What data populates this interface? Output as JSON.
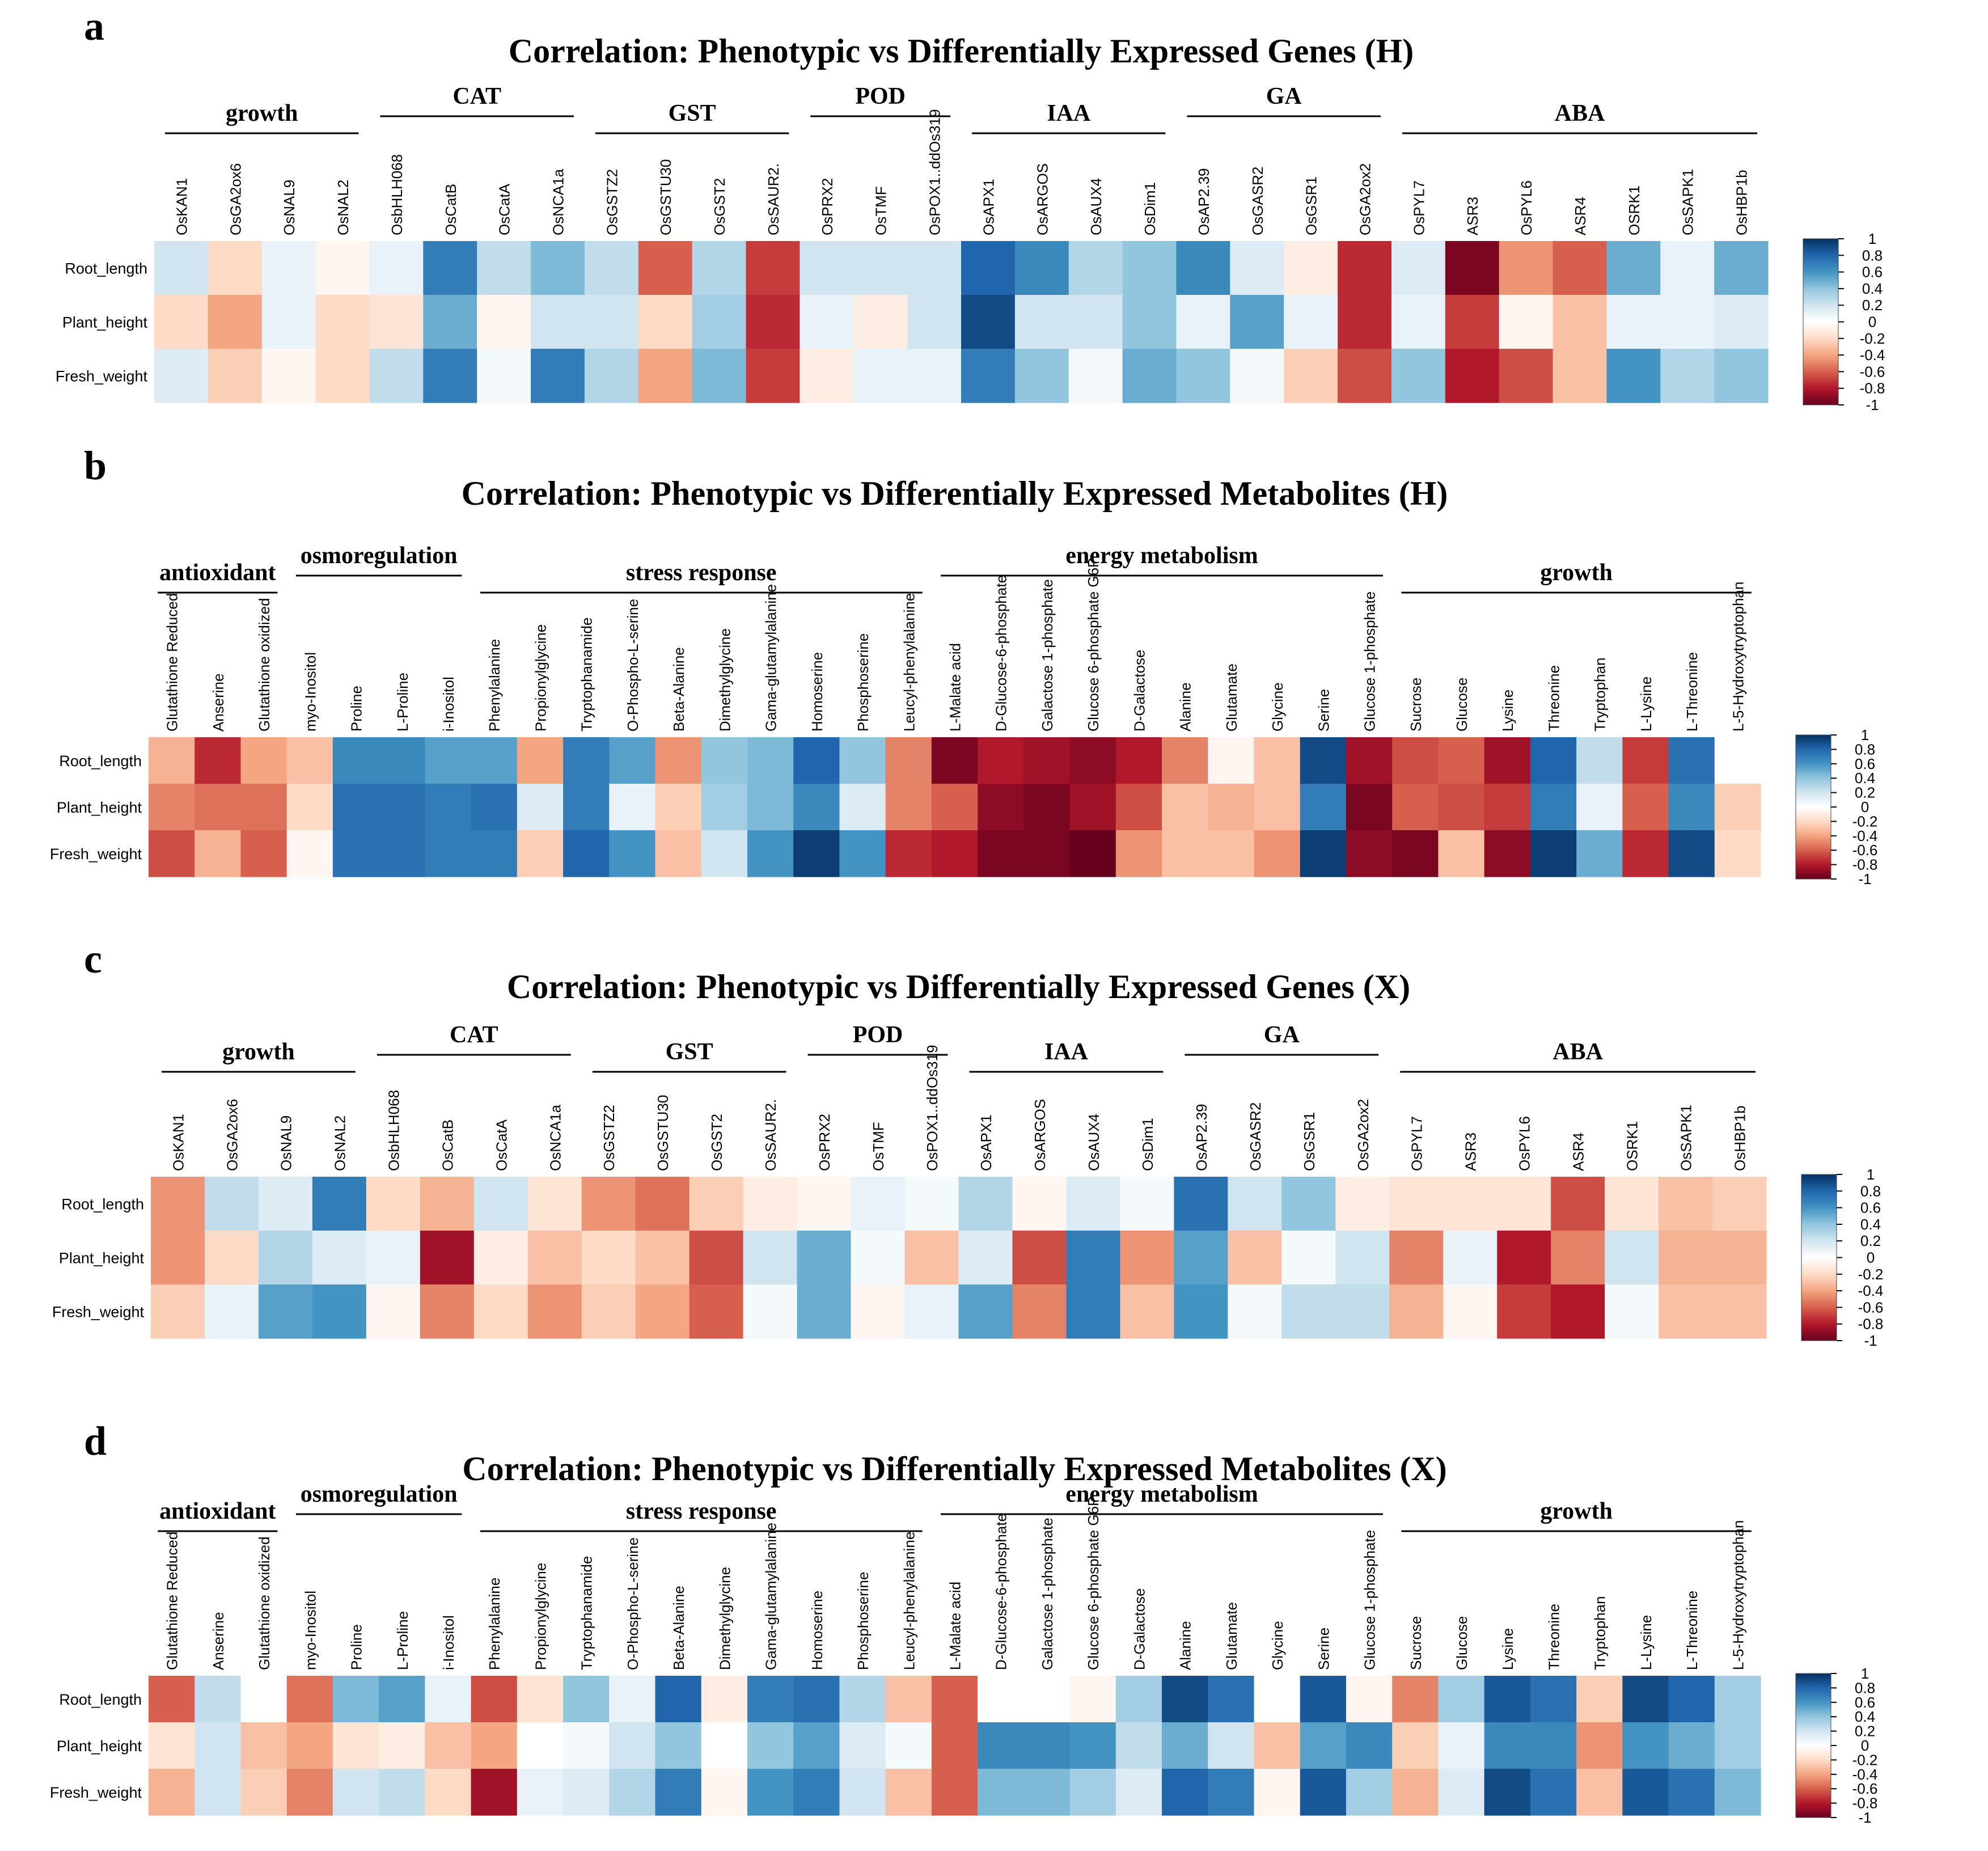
{
  "figure": {
    "scale": {
      "ticks": [
        "1",
        "0.8",
        "0.6",
        "0.4",
        "0.2",
        "0",
        "-0.2",
        "-0.4",
        "-0.6",
        "-0.8",
        "-1"
      ]
    },
    "colors": {
      "negative": "#67001f",
      "neutral": "#ffffff",
      "positive": "#053061"
    }
  },
  "chart_data": [
    {
      "type": "heatmap",
      "panel_letter": "a",
      "title": "Correlation: Phenotypic vs Differentially Expressed Genes (H)",
      "rows": [
        "Root_length",
        "Plant_height",
        "Fresh_weight"
      ],
      "columns": [
        "OsKAN1",
        "OsGA2ox6",
        "OsNAL9",
        "OsNAL2",
        "OsbHLH068",
        "OsCatB",
        "OsCatA",
        "OsNCA1a",
        "OsGSTZ2",
        "OsGSTU30",
        "OsGST2",
        "OsSAUR2.",
        "OsPRX2",
        "OsTMF",
        "OsPOX1..ddOs319",
        "OsAPX1",
        "OsARGOS",
        "OsAUX4",
        "OsDim1",
        "OsAP2.39",
        "OsGASR2",
        "OsGSR1",
        "OsGA2ox2",
        "OsPYL7",
        "ASR3",
        "OsPYL6",
        "ASR4",
        "OSRK1",
        "OsSAPK1",
        "OsHBP1b"
      ],
      "groups": [
        {
          "label": "growth",
          "start": 0,
          "end": 3
        },
        {
          "label": "CAT",
          "start": 4,
          "end": 7
        },
        {
          "label": "GST",
          "start": 8,
          "end": 11
        },
        {
          "label": "POD",
          "start": 12,
          "end": 14
        },
        {
          "label": "IAA",
          "start": 15,
          "end": 18
        },
        {
          "label": "GA",
          "start": 19,
          "end": 22
        },
        {
          "label": "ABA",
          "start": 23,
          "end": 29
        }
      ],
      "values": [
        [
          0.2,
          -0.2,
          0.1,
          -0.05,
          0.1,
          0.7,
          0.25,
          0.45,
          0.25,
          -0.6,
          0.3,
          -0.7,
          0.2,
          0.2,
          0.2,
          0.8,
          0.65,
          0.3,
          0.4,
          0.65,
          0.15,
          -0.1,
          -0.75,
          0.15,
          -0.95,
          -0.45,
          -0.6,
          0.5,
          0.1,
          0.5
        ],
        [
          -0.2,
          -0.4,
          0.1,
          -0.2,
          -0.15,
          0.5,
          -0.05,
          0.2,
          0.2,
          -0.2,
          0.35,
          -0.75,
          0.1,
          -0.1,
          0.2,
          0.9,
          0.2,
          0.2,
          0.4,
          0.1,
          0.55,
          0.1,
          -0.75,
          0.1,
          -0.7,
          -0.05,
          -0.3,
          0.1,
          0.1,
          0.15
        ],
        [
          0.15,
          -0.25,
          -0.05,
          -0.2,
          0.25,
          0.7,
          0.05,
          0.7,
          0.3,
          -0.4,
          0.45,
          -0.7,
          -0.1,
          0.1,
          0.1,
          0.7,
          0.4,
          0.05,
          0.5,
          0.4,
          0.05,
          -0.25,
          -0.65,
          0.4,
          -0.8,
          -0.65,
          -0.3,
          0.6,
          0.3,
          0.4
        ]
      ],
      "value_range": [
        -1,
        1
      ]
    },
    {
      "type": "heatmap",
      "panel_letter": "b",
      "title": "Correlation: Phenotypic vs Differentially Expressed Metabolites (H)",
      "rows": [
        "Root_length",
        "Plant_height",
        "Fresh_weight"
      ],
      "columns": [
        "Glutathione Reduced",
        "Anserine",
        "Glutathione oxidized",
        "myo-Inositol",
        "Proline",
        "L-Proline",
        "i-Inositol",
        "Phenylalanine",
        "Propionylglycine",
        "Tryptophanamide",
        "O-Phospho-L-serine",
        "Beta-Alanine",
        "Dimethylglycine",
        "Gama-glutamylalanine",
        "Homoserine",
        "Phosphoserine",
        "Leucyl-phenylalanine",
        "L-Malate acid",
        "D-Glucose-6-phosphate",
        "Galactose 1-phosphate",
        "Glucose 6-phosphate G6P",
        "D-Galactose",
        "Alanine",
        "Glutamate",
        "Glycine",
        "Serine",
        "Glucose 1-phosphate",
        "Sucrose",
        "Glucose",
        "Lysine",
        "Threonine",
        "Tryptophan",
        "L-Lysine",
        "L-Threonine",
        "L-5-Hydroxytryptophan"
      ],
      "groups": [
        {
          "label": "antioxidant",
          "start": 0,
          "end": 2
        },
        {
          "label": "osmoregulation",
          "start": 3,
          "end": 6
        },
        {
          "label": "stress response",
          "start": 7,
          "end": 16
        },
        {
          "label": "energy metabolism",
          "start": 17,
          "end": 26
        },
        {
          "label": "growth",
          "start": 27,
          "end": 34
        }
      ],
      "values": [
        [
          -0.35,
          -0.75,
          -0.4,
          -0.3,
          0.65,
          0.65,
          0.55,
          0.55,
          -0.4,
          0.7,
          0.55,
          -0.45,
          0.4,
          0.45,
          0.8,
          0.4,
          -0.5,
          -0.95,
          -0.8,
          -0.85,
          -0.9,
          -0.8,
          -0.5,
          -0.05,
          -0.3,
          0.9,
          -0.85,
          -0.65,
          -0.6,
          -0.85,
          0.8,
          0.25,
          -0.7,
          0.75,
          null
        ],
        [
          -0.5,
          -0.55,
          -0.55,
          -0.2,
          0.75,
          0.75,
          0.7,
          0.75,
          0.15,
          0.7,
          0.1,
          -0.25,
          0.35,
          0.45,
          0.65,
          0.15,
          -0.5,
          -0.6,
          -0.9,
          -0.95,
          -0.85,
          -0.65,
          -0.3,
          -0.35,
          -0.3,
          0.7,
          -0.95,
          -0.6,
          -0.65,
          -0.7,
          0.7,
          0.1,
          -0.6,
          0.65,
          -0.25
        ],
        [
          -0.65,
          -0.35,
          -0.6,
          -0.05,
          0.75,
          0.75,
          0.7,
          0.7,
          -0.25,
          0.8,
          0.6,
          -0.3,
          0.2,
          0.6,
          0.95,
          0.6,
          -0.75,
          -0.8,
          -0.95,
          -0.95,
          -1.0,
          -0.45,
          -0.3,
          -0.3,
          -0.45,
          0.95,
          -0.9,
          -0.95,
          -0.3,
          -0.9,
          0.95,
          0.5,
          -0.75,
          0.9,
          -0.2
        ]
      ],
      "value_range": [
        -1,
        1
      ]
    },
    {
      "type": "heatmap",
      "panel_letter": "c",
      "title": "Correlation: Phenotypic vs Differentially Expressed Genes (X)",
      "rows": [
        "Root_length",
        "Plant_height",
        "Fresh_weight"
      ],
      "columns": [
        "OsKAN1",
        "OsGA2ox6",
        "OsNAL9",
        "OsNAL2",
        "OsbHLH068",
        "OsCatB",
        "OsCatA",
        "OsNCA1a",
        "OsGSTZ2",
        "OsGSTU30",
        "OsGST2",
        "OsSAUR2.",
        "OsPRX2",
        "OsTMF",
        "OsPOX1..ddOs319",
        "OsAPX1",
        "OsARGOS",
        "OsAUX4",
        "OsDim1",
        "OsAP2.39",
        "OsGASR2",
        "OsGSR1",
        "OsGA2ox2",
        "OsPYL7",
        "ASR3",
        "OsPYL6",
        "ASR4",
        "OSRK1",
        "OsSAPK1",
        "OsHBP1b"
      ],
      "groups": [
        {
          "label": "growth",
          "start": 0,
          "end": 3
        },
        {
          "label": "CAT",
          "start": 4,
          "end": 7
        },
        {
          "label": "GST",
          "start": 8,
          "end": 11
        },
        {
          "label": "POD",
          "start": 12,
          "end": 14
        },
        {
          "label": "IAA",
          "start": 15,
          "end": 18
        },
        {
          "label": "GA",
          "start": 19,
          "end": 22
        },
        {
          "label": "ABA",
          "start": 23,
          "end": 29
        }
      ],
      "values": [
        [
          -0.45,
          0.25,
          0.15,
          0.7,
          -0.2,
          -0.35,
          0.2,
          -0.15,
          -0.45,
          -0.55,
          -0.25,
          -0.1,
          -0.05,
          0.1,
          0.05,
          0.3,
          -0.05,
          0.15,
          0.05,
          0.75,
          0.2,
          0.4,
          -0.1,
          -0.15,
          -0.15,
          -0.15,
          -0.65,
          -0.15,
          -0.3,
          -0.25
        ],
        [
          -0.45,
          -0.2,
          0.3,
          0.15,
          0.1,
          -0.85,
          -0.1,
          -0.3,
          -0.2,
          -0.3,
          -0.65,
          0.2,
          0.5,
          0.05,
          -0.3,
          0.15,
          -0.65,
          0.7,
          -0.45,
          0.55,
          -0.3,
          0.05,
          0.2,
          -0.5,
          0.1,
          -0.8,
          -0.5,
          0.2,
          -0.35,
          -0.35
        ],
        [
          -0.25,
          0.1,
          0.55,
          0.6,
          -0.05,
          -0.5,
          -0.2,
          -0.45,
          -0.25,
          -0.4,
          -0.6,
          0.05,
          0.5,
          -0.05,
          0.1,
          0.55,
          -0.5,
          0.7,
          -0.3,
          0.6,
          0.05,
          0.25,
          0.25,
          -0.35,
          -0.05,
          -0.7,
          -0.8,
          0.05,
          -0.3,
          -0.3
        ]
      ],
      "value_range": [
        -1,
        1
      ]
    },
    {
      "type": "heatmap",
      "panel_letter": "d",
      "title": "Correlation: Phenotypic vs Differentially Expressed Metabolites (X)",
      "rows": [
        "Root_length",
        "Plant_height",
        "Fresh_weight"
      ],
      "columns": [
        "Glutathione Reduced",
        "Anserine",
        "Glutathione oxidized",
        "myo-Inositol",
        "Proline",
        "L-Proline",
        "i-Inositol",
        "Phenylalanine",
        "Propionylglycine",
        "Tryptophanamide",
        "O-Phospho-L-serine",
        "Beta-Alanine",
        "Dimethylglycine",
        "Gama-glutamylalanine",
        "Homoserine",
        "Phosphoserine",
        "Leucyl-phenylalanine",
        "L-Malate acid",
        "D-Glucose-6-phosphate",
        "Galactose 1-phosphate",
        "Glucose 6-phosphate G6P",
        "D-Galactose",
        "Alanine",
        "Glutamate",
        "Glycine",
        "Serine",
        "Glucose 1-phosphate",
        "Sucrose",
        "Glucose",
        "Lysine",
        "Threonine",
        "Tryptophan",
        "L-Lysine",
        "L-Threonine",
        "L-5-Hydroxytryptophan"
      ],
      "groups": [
        {
          "label": "antioxidant",
          "start": 0,
          "end": 2
        },
        {
          "label": "osmoregulation",
          "start": 3,
          "end": 6
        },
        {
          "label": "stress response",
          "start": 7,
          "end": 16
        },
        {
          "label": "energy metabolism",
          "start": 17,
          "end": 26
        },
        {
          "label": "growth",
          "start": 27,
          "end": 34
        }
      ],
      "values": [
        [
          -0.6,
          0.25,
          0.0,
          -0.55,
          0.45,
          0.55,
          0.1,
          -0.65,
          -0.15,
          0.4,
          0.1,
          0.8,
          -0.1,
          0.7,
          0.75,
          0.3,
          -0.3,
          -0.6,
          0.0,
          0.0,
          -0.05,
          0.35,
          0.9,
          0.75,
          0.0,
          0.85,
          -0.05,
          -0.5,
          0.35,
          0.85,
          0.75,
          -0.25,
          0.9,
          0.8,
          0.35
        ],
        [
          -0.15,
          0.2,
          -0.3,
          -0.4,
          -0.15,
          -0.1,
          -0.3,
          -0.4,
          0.0,
          0.05,
          0.2,
          0.4,
          0.0,
          0.4,
          0.55,
          0.15,
          0.05,
          -0.6,
          0.65,
          0.65,
          0.6,
          0.25,
          0.5,
          0.2,
          -0.3,
          0.55,
          0.65,
          -0.25,
          0.1,
          0.65,
          0.65,
          -0.45,
          0.6,
          0.5,
          0.35
        ],
        [
          -0.35,
          0.2,
          -0.25,
          -0.5,
          0.2,
          0.25,
          -0.2,
          -0.85,
          0.1,
          0.15,
          0.3,
          0.7,
          -0.05,
          0.6,
          0.7,
          0.2,
          -0.3,
          -0.6,
          0.45,
          0.45,
          0.35,
          0.15,
          0.8,
          0.7,
          -0.05,
          0.85,
          0.35,
          -0.35,
          0.15,
          0.9,
          0.75,
          -0.3,
          0.85,
          0.75,
          0.45
        ]
      ],
      "value_range": [
        -1,
        1
      ]
    }
  ]
}
